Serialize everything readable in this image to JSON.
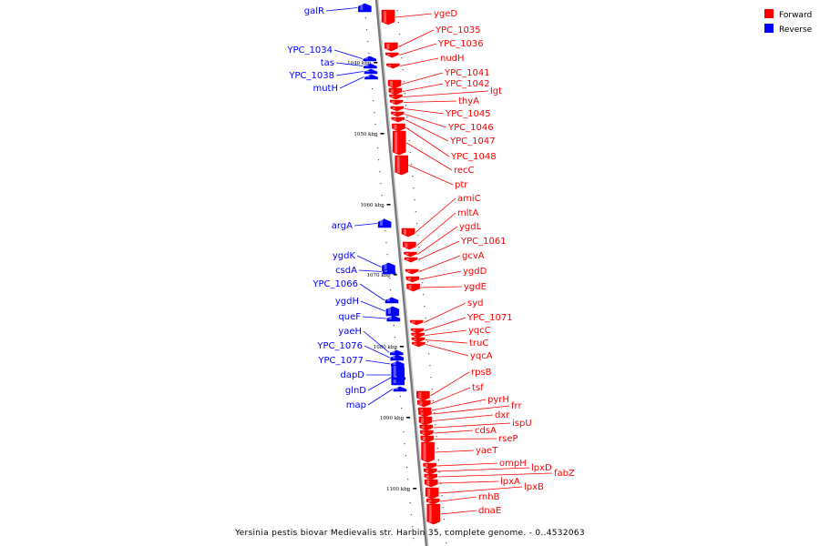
{
  "caption": "Yersinia pestis biovar Medievalis str. Harbin 35, complete genome. - 0..4532063",
  "legend": [
    {
      "label": "Forward",
      "color": "#ff0000"
    },
    {
      "label": "Reverse",
      "color": "#0000ff"
    }
  ],
  "colors": {
    "forward": "#ff0000",
    "reverse": "#0000ff",
    "axis": "#888888"
  },
  "ruler_labels": [
    "1040 kbp",
    "1050 kbp",
    "1060 kbp",
    "1070 kbp",
    "1080 kbp",
    "1090 kbp",
    "1100 kbp"
  ],
  "reverse_genes": [
    "galR",
    "YPC_1034",
    "tas",
    "YPC_1038",
    "mutH",
    "argA",
    "ygdK",
    "csdA",
    "YPC_1066",
    "ygdH",
    "queF",
    "yaeH",
    "YPC_1076",
    "YPC_1077",
    "dapD",
    "glnD",
    "map"
  ],
  "forward_genes": [
    "ygeD",
    "YPC_1035",
    "YPC_1036",
    "nudH",
    "YPC_1041",
    "YPC_1042",
    "lgt",
    "thyA",
    "YPC_1045",
    "YPC_1046",
    "YPC_1047",
    "YPC_1048",
    "recC",
    "ptr",
    "amiC",
    "mltA",
    "ygdL",
    "YPC_1061",
    "gcvA",
    "ygdD",
    "ygdE",
    "syd",
    "YPC_1071",
    "yqcC",
    "truC",
    "yqcA",
    "rpsB",
    "tsf",
    "pyrH",
    "frr",
    "dxr",
    "ispU",
    "cdsA",
    "rseP",
    "yaeT",
    "ompH",
    "lpxD",
    "fabZ",
    "lpxA",
    "lpxB",
    "rnhB",
    "dnaE"
  ]
}
